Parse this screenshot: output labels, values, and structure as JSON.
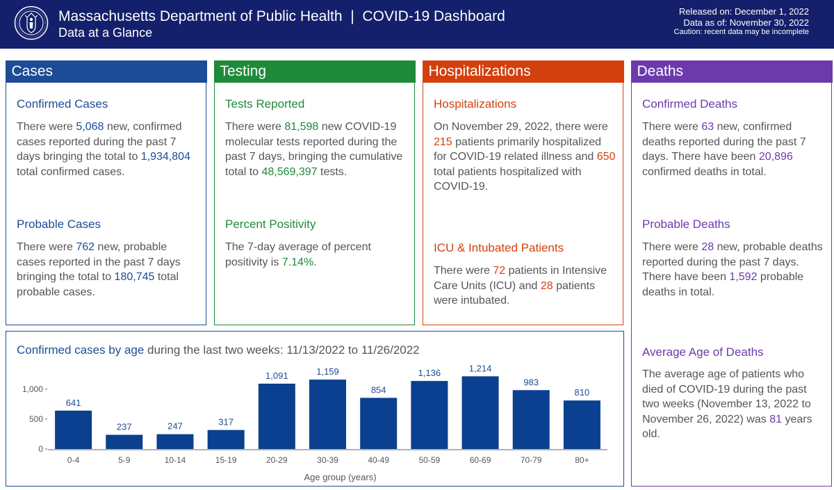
{
  "header": {
    "title": "Massachusetts Department of Public Health  |  COVID-19 Dashboard",
    "subtitle": "Data at a Glance",
    "released": "Released on: December 1, 2022",
    "data_as_of": "Data as of: November 30, 2022",
    "caution": "Caution: recent data may be incomplete",
    "seal_icon": "massachusetts-seal-icon"
  },
  "colors": {
    "header_bg": "#14206b",
    "cases": "#1c4c96",
    "testing": "#1f8a3a",
    "hospitalizations": "#d3400e",
    "deaths": "#6c3aab",
    "bar": "#0b3f8f"
  },
  "cases": {
    "heading": "Cases",
    "confirmed": {
      "title": "Confirmed Cases",
      "t1": "There were ",
      "n1": "5,068",
      "t2": " new, confirmed cases reported during the past 7 days bringing the total to ",
      "n2": "1,934,804",
      "t3": " total confirmed cases."
    },
    "probable": {
      "title": "Probable Cases",
      "t1": "There were ",
      "n1": "762",
      "t2": " new, probable cases reported in the past 7 days bringing the total to ",
      "n2": "180,745",
      "t3": " total probable cases."
    }
  },
  "testing": {
    "heading": "Testing",
    "tests": {
      "title": "Tests Reported",
      "t1": "There were ",
      "n1": "81,598",
      "t2": " new COVID-19 molecular tests reported during the past 7 days, bringing the cumulative total to ",
      "n2": "48,569,397",
      "t3": " tests."
    },
    "positivity": {
      "title": "Percent Positivity",
      "t1": "The 7-day average of percent positivity is ",
      "n1": "7.14%",
      "t2": "."
    }
  },
  "hospitalizations": {
    "heading": "Hospitalizations",
    "hosp": {
      "title": "Hospitalizations",
      "t1": "On November 29, 2022, there were ",
      "n1": "215",
      "t2": " patients primarily hospitalized for COVID-19 related illness and ",
      "n2": "650",
      "t3": " total patients hospitalized with COVID-19."
    },
    "icu": {
      "title": "ICU & Intubated Patients",
      "t1": "There were ",
      "n1": "72",
      "t2": " patients in Intensive Care Units (ICU) and ",
      "n2": "28",
      "t3": " patients were intubated."
    }
  },
  "deaths": {
    "heading": "Deaths",
    "confirmed": {
      "title": "Confirmed Deaths",
      "t1": "There were ",
      "n1": "63",
      "t2": " new, confirmed deaths reported during the past 7 days. There have been ",
      "n2": "20,896",
      "t3": " confirmed deaths in total."
    },
    "probable": {
      "title": "Probable Deaths",
      "t1": "There were ",
      "n1": "28",
      "t2": " new, probable deaths reported during the past 7 days. There have been ",
      "n2": "1,592",
      "t3": " probable deaths in total."
    },
    "avg_age": {
      "title": "Average Age of Deaths",
      "t1": "The average age of patients who died of COVID-19 during the past two weeks (November 13, 2022 to November 26, 2022) was ",
      "n1": "81",
      "t2": " years old."
    }
  },
  "chart_title": {
    "highlight": "Confirmed cases by age",
    "rest": " during the last two weeks: 11/13/2022 to 11/26/2022"
  },
  "chart_data": {
    "type": "bar",
    "categories": [
      "0-4",
      "5-9",
      "10-14",
      "15-19",
      "20-29",
      "30-39",
      "40-49",
      "50-59",
      "60-69",
      "70-79",
      "80+"
    ],
    "values": [
      641,
      237,
      247,
      317,
      1091,
      1159,
      854,
      1136,
      1214,
      983,
      810
    ],
    "value_labels": [
      "641",
      "237",
      "247",
      "317",
      "1,091",
      "1,159",
      "854",
      "1,136",
      "1,214",
      "983",
      "810"
    ],
    "xlabel": "Age group (years)",
    "ylabel": "",
    "ylim": [
      0,
      1300
    ],
    "yticks": [
      0,
      500,
      1000
    ],
    "ytick_labels": [
      "0",
      "500",
      "1,000"
    ],
    "grid": false,
    "data_labels": true
  }
}
